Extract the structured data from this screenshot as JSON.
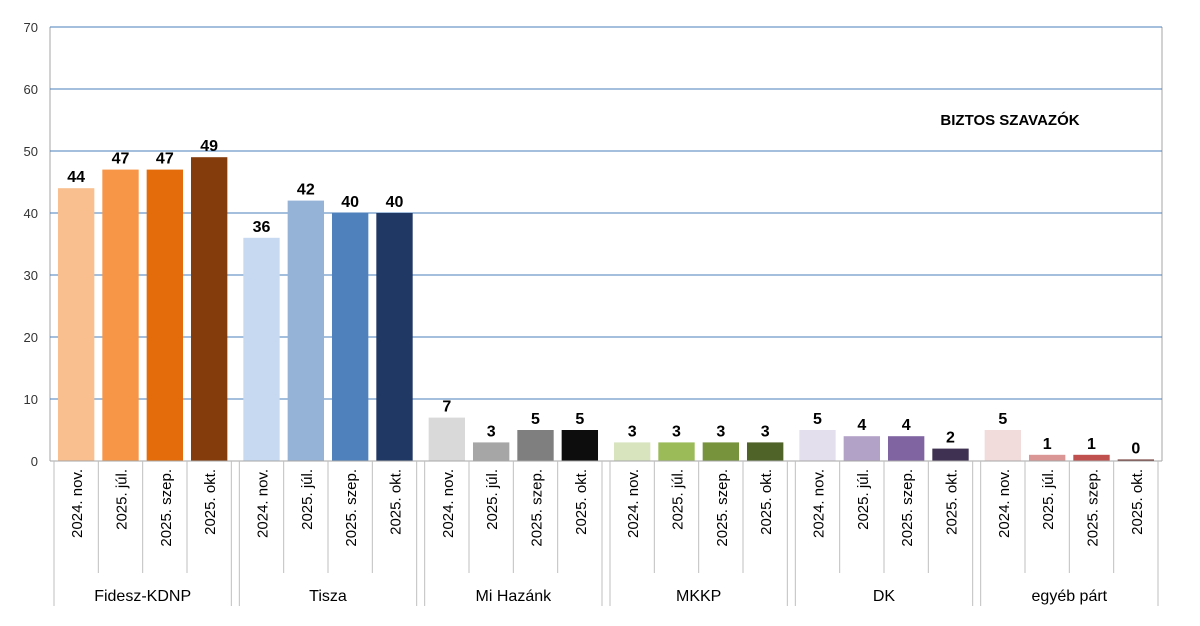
{
  "chart_data": {
    "type": "bar",
    "title": "BIZTOS SZAVAZÓK",
    "ylim": [
      0,
      70
    ],
    "yticks": [
      0,
      10,
      20,
      30,
      40,
      50,
      60,
      70
    ],
    "grid": true,
    "periods": [
      "2024. nov.",
      "2025. júl.",
      "2025. szep.",
      "2025. okt."
    ],
    "groups": [
      {
        "name": "Fidesz-KDNP",
        "values": [
          44,
          47,
          47,
          49
        ],
        "colors": [
          "#F9BF8F",
          "#F79646",
          "#E46C0A",
          "#843C0C"
        ]
      },
      {
        "name": "Tisza",
        "values": [
          36,
          42,
          40,
          40
        ],
        "colors": [
          "#C6D9F1",
          "#95B3D7",
          "#4F81BD",
          "#1F3864"
        ]
      },
      {
        "name": "Mi Hazánk",
        "values": [
          7,
          3,
          5,
          5
        ],
        "colors": [
          "#D9D9D9",
          "#A6A6A6",
          "#7F7F7F",
          "#0D0D0D"
        ]
      },
      {
        "name": "MKKP",
        "values": [
          3,
          3,
          3,
          3
        ],
        "colors": [
          "#D7E4BD",
          "#9BBB59",
          "#77933C",
          "#4F6228"
        ]
      },
      {
        "name": "DK",
        "values": [
          5,
          4,
          4,
          2
        ],
        "colors": [
          "#E4DFEC",
          "#B3A2C7",
          "#8064A2",
          "#3F3151"
        ]
      },
      {
        "name": "egyéb párt",
        "values": [
          5,
          1,
          1,
          0
        ],
        "colors": [
          "#F2DCDB",
          "#D99694",
          "#C0504D",
          "#632523"
        ]
      }
    ]
  }
}
